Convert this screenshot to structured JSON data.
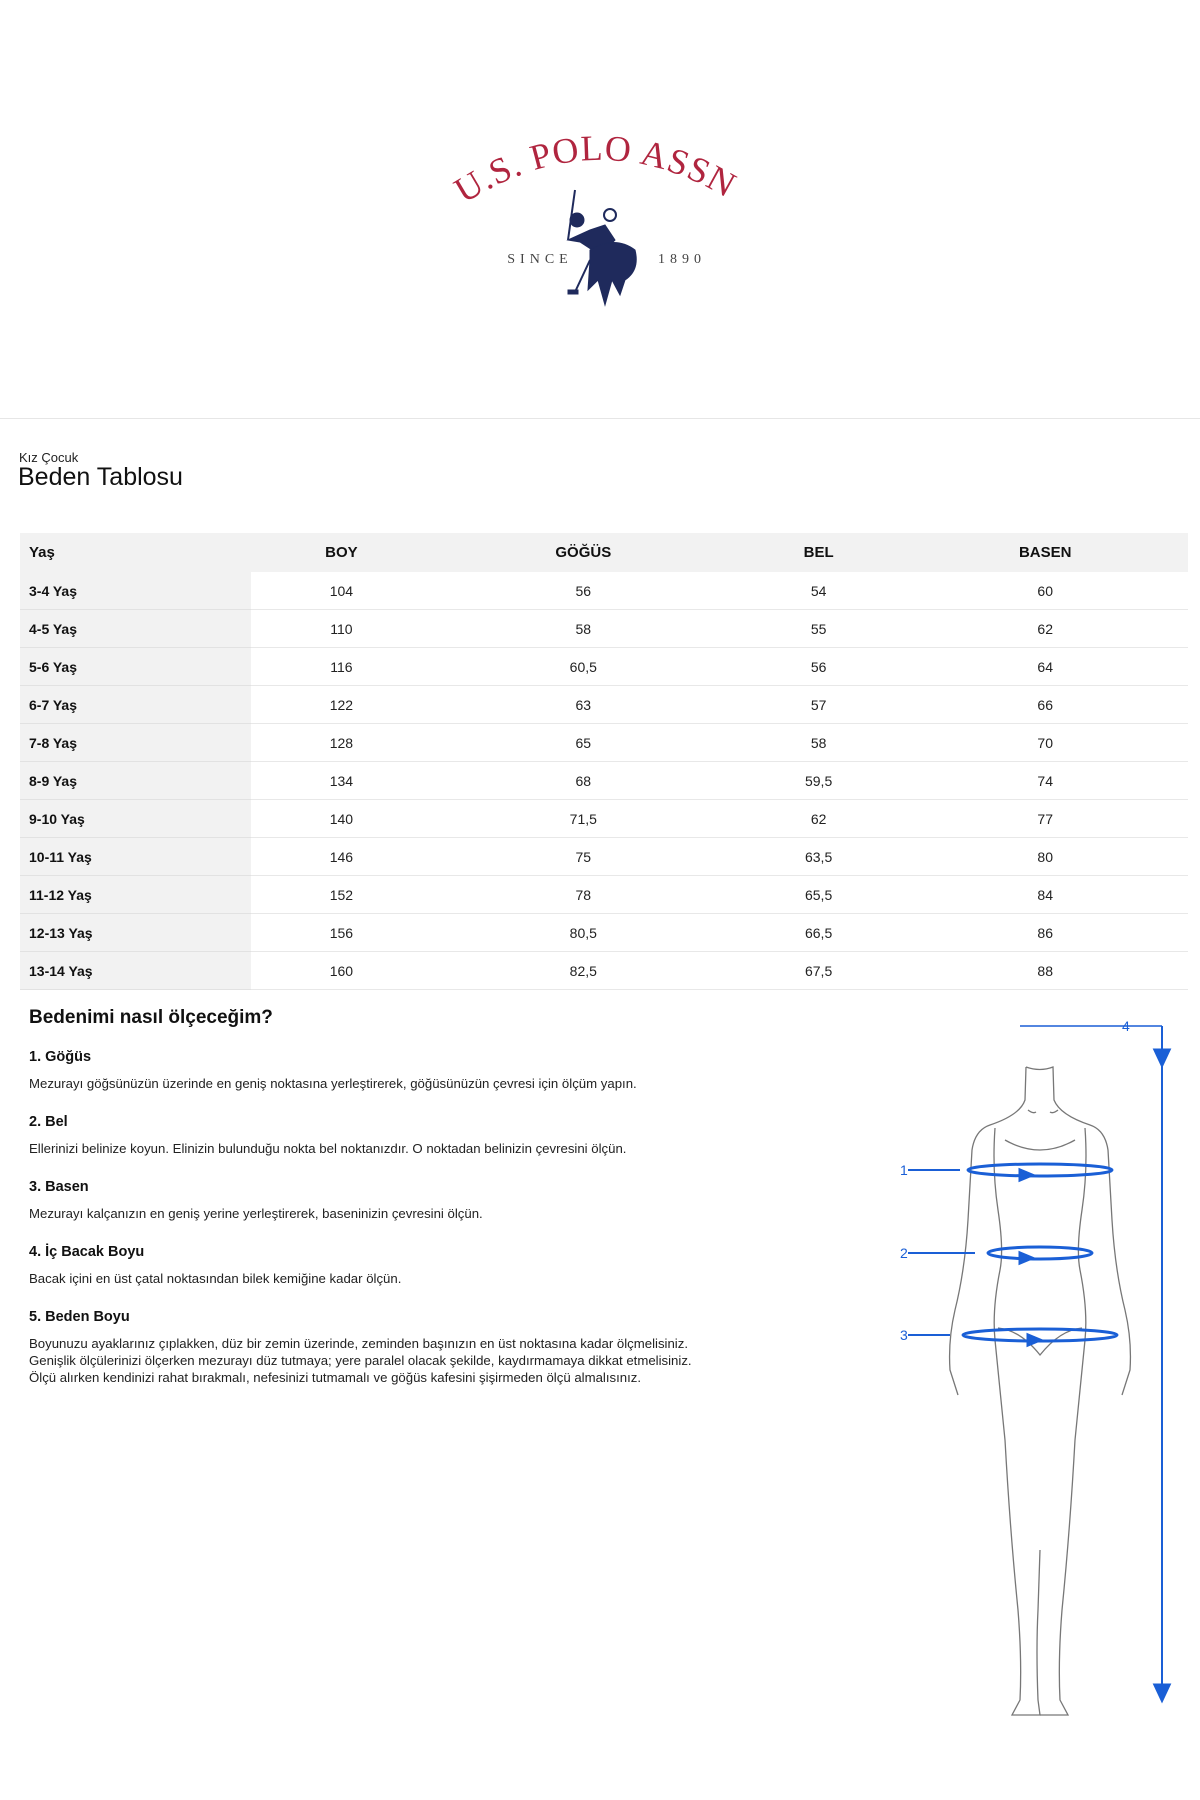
{
  "logo": {
    "brand": "U.S. POLO ASSN.",
    "since_label": "SINCE",
    "year": "1890",
    "brand_color": "#b0253f",
    "emblem_color": "#1f2a5c"
  },
  "page": {
    "subtitle": "Kız Çocuk",
    "title": "Beden Tablosu"
  },
  "size_table": {
    "headers": [
      "Yaş",
      "BOY",
      "GÖĞÜS",
      "BEL",
      "BASEN"
    ],
    "rows": [
      [
        "3-4 Yaş",
        "104",
        "56",
        "54",
        "60"
      ],
      [
        "4-5 Yaş",
        "110",
        "58",
        "55",
        "62"
      ],
      [
        "5-6 Yaş",
        "116",
        "60,5",
        "56",
        "64"
      ],
      [
        "6-7 Yaş",
        "122",
        "63",
        "57",
        "66"
      ],
      [
        "7-8 Yaş",
        "128",
        "65",
        "58",
        "70"
      ],
      [
        "8-9 Yaş",
        "134",
        "68",
        "59,5",
        "74"
      ],
      [
        "9-10 Yaş",
        "140",
        "71,5",
        "62",
        "77"
      ],
      [
        "10-11 Yaş",
        "146",
        "75",
        "63,5",
        "80"
      ],
      [
        "11-12 Yaş",
        "152",
        "78",
        "65,5",
        "84"
      ],
      [
        "12-13 Yaş",
        "156",
        "80,5",
        "66,5",
        "86"
      ],
      [
        "13-14 Yaş",
        "160",
        "82,5",
        "67,5",
        "88"
      ]
    ]
  },
  "howto": {
    "heading": "Bedenimi nasıl ölçeceğim?",
    "items": [
      {
        "title": "1. Göğüs",
        "text": "Mezurayı göğsünüzün üzerinde en geniş noktasına yerleştirerek, göğüsünüzün çevresi için ölçüm yapın."
      },
      {
        "title": "2. Bel",
        "text": "Ellerinizi belinize koyun. Elinizin bulunduğu nokta bel noktanızdır. O noktadan belinizin çevresini ölçün."
      },
      {
        "title": "3. Basen",
        "text": "Mezurayı kalçanızın en geniş yerine yerleştirerek, baseninizin çevresini ölçün."
      },
      {
        "title": "4. İç Bacak Boyu",
        "text": "Bacak içini en üst çatal noktasından bilek kemiğine kadar ölçün."
      },
      {
        "title": "5. Beden Boyu",
        "text": "Boyunuzu ayaklarınız çıplakken, düz bir zemin üzerinde, zeminden başınızın en üst noktasına kadar ölçmelisiniz.\nGenişlik ölçülerinizi ölçerken mezurayı düz tutmaya; yere paralel olacak şekilde, kaydırmamaya dikkat etmelisiniz.\nÖlçü alırken kendinizi rahat bırakmalı, nefesinizi tutmamalı ve göğüs kafesini şişirmeden ölçü almalısınız."
      }
    ]
  },
  "figure": {
    "labels": [
      "1",
      "2",
      "3",
      "4"
    ],
    "measure_color": "#1a5fd6"
  }
}
